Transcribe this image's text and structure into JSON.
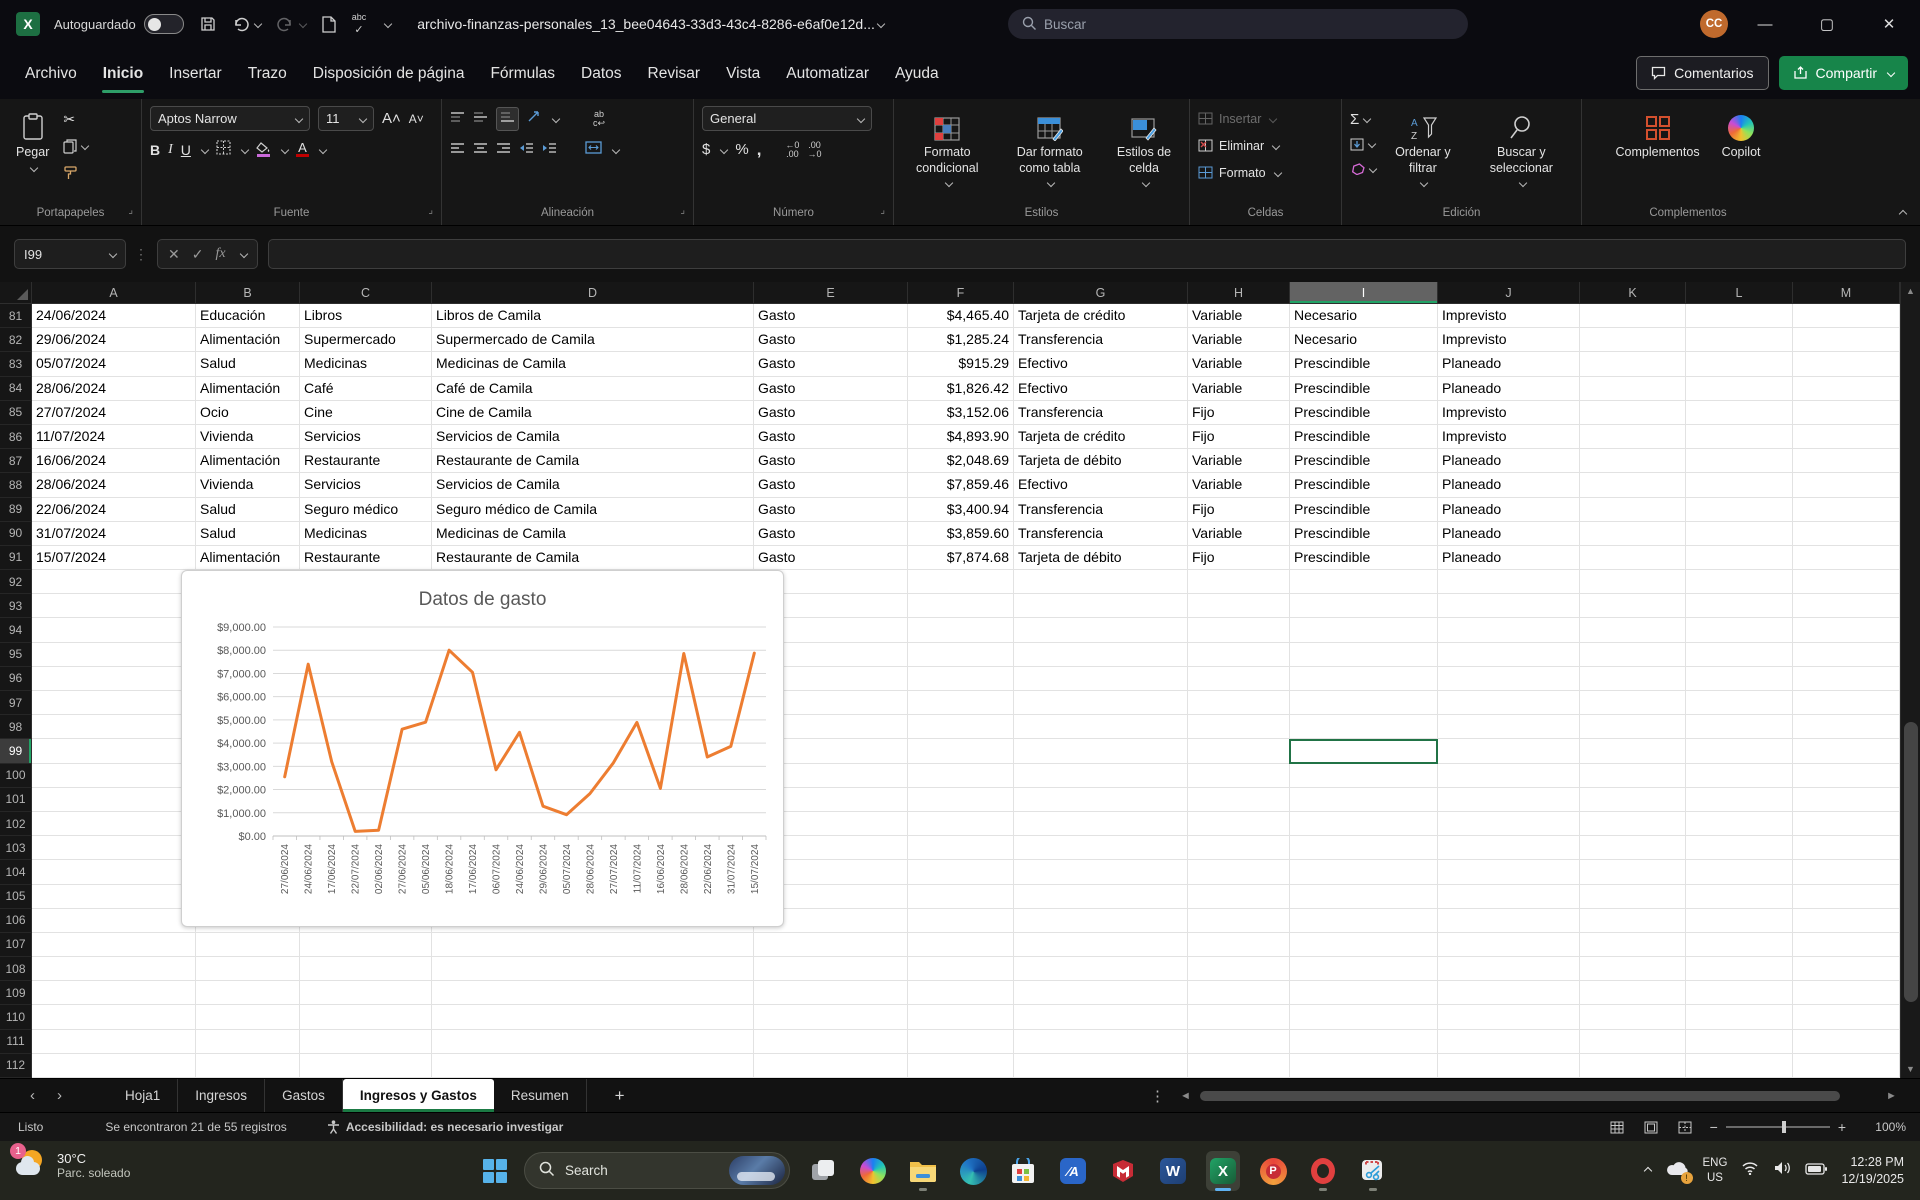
{
  "window": {
    "autosave_label": "Autoguardado",
    "title": "archivo-finanzas-personales_13_bee04643-33d3-43c4-8286-e6af0e12d...",
    "search_placeholder": "Buscar",
    "avatar_initials": "CC"
  },
  "menubar": {
    "tabs": [
      "Archivo",
      "Inicio",
      "Insertar",
      "Trazo",
      "Disposición de página",
      "Fórmulas",
      "Datos",
      "Revisar",
      "Vista",
      "Automatizar",
      "Ayuda"
    ],
    "active_tab": "Inicio",
    "comments_label": "Comentarios",
    "share_label": "Compartir"
  },
  "ribbon": {
    "paste_label": "Pegar",
    "font_name": "Aptos Narrow",
    "font_size": "11",
    "number_format": "General",
    "conditional_format_label": "Formato condicional",
    "format_table_label": "Dar formato como tabla",
    "cell_styles_label": "Estilos de celda",
    "insert_label": "Insertar",
    "delete_label": "Eliminar",
    "format_label": "Formato",
    "sort_filter_label": "Ordenar y filtrar",
    "find_select_label": "Buscar y seleccionar",
    "addins_label": "Complementos",
    "copilot_label": "Copilot",
    "groups": [
      "Portapapeles",
      "Fuente",
      "Alineación",
      "Número",
      "Estilos",
      "Celdas",
      "Edición",
      "Complementos"
    ]
  },
  "formula_bar": {
    "name_box": "I99",
    "formula": ""
  },
  "spreadsheet": {
    "columns": [
      "A",
      "B",
      "C",
      "D",
      "E",
      "F",
      "G",
      "H",
      "I",
      "J",
      "K",
      "L",
      "M"
    ],
    "selected_column": "I",
    "selected_row": 99,
    "selected_cell": "I99",
    "first_row": 81,
    "last_visible_row": 113,
    "rows": [
      {
        "n": 81,
        "cells": [
          "24/06/2024",
          "Educación",
          "Libros",
          "Libros de Camila",
          "Gasto",
          "$4,465.40",
          "Tarjeta de crédito",
          "Variable",
          "Necesario",
          "Imprevisto"
        ]
      },
      {
        "n": 82,
        "cells": [
          "29/06/2024",
          "Alimentación",
          "Supermercado",
          "Supermercado de Camila",
          "Gasto",
          "$1,285.24",
          "Transferencia",
          "Variable",
          "Necesario",
          "Imprevisto"
        ]
      },
      {
        "n": 83,
        "cells": [
          "05/07/2024",
          "Salud",
          "Medicinas",
          "Medicinas de Camila",
          "Gasto",
          "$915.29",
          "Efectivo",
          "Variable",
          "Prescindible",
          "Planeado"
        ]
      },
      {
        "n": 84,
        "cells": [
          "28/06/2024",
          "Alimentación",
          "Café",
          "Café de Camila",
          "Gasto",
          "$1,826.42",
          "Efectivo",
          "Variable",
          "Prescindible",
          "Planeado"
        ]
      },
      {
        "n": 85,
        "cells": [
          "27/07/2024",
          "Ocio",
          "Cine",
          "Cine de Camila",
          "Gasto",
          "$3,152.06",
          "Transferencia",
          "Fijo",
          "Prescindible",
          "Imprevisto"
        ]
      },
      {
        "n": 86,
        "cells": [
          "11/07/2024",
          "Vivienda",
          "Servicios",
          "Servicios de Camila",
          "Gasto",
          "$4,893.90",
          "Tarjeta de crédito",
          "Fijo",
          "Prescindible",
          "Imprevisto"
        ]
      },
      {
        "n": 87,
        "cells": [
          "16/06/2024",
          "Alimentación",
          "Restaurante",
          "Restaurante de Camila",
          "Gasto",
          "$2,048.69",
          "Tarjeta de débito",
          "Variable",
          "Prescindible",
          "Planeado"
        ]
      },
      {
        "n": 88,
        "cells": [
          "28/06/2024",
          "Vivienda",
          "Servicios",
          "Servicios de Camila",
          "Gasto",
          "$7,859.46",
          "Efectivo",
          "Variable",
          "Prescindible",
          "Planeado"
        ]
      },
      {
        "n": 89,
        "cells": [
          "22/06/2024",
          "Salud",
          "Seguro médico",
          "Seguro médico de Camila",
          "Gasto",
          "$3,400.94",
          "Transferencia",
          "Fijo",
          "Prescindible",
          "Planeado"
        ]
      },
      {
        "n": 90,
        "cells": [
          "31/07/2024",
          "Salud",
          "Medicinas",
          "Medicinas de Camila",
          "Gasto",
          "$3,859.60",
          "Transferencia",
          "Variable",
          "Prescindible",
          "Planeado"
        ]
      },
      {
        "n": 91,
        "cells": [
          "15/07/2024",
          "Alimentación",
          "Restaurante",
          "Restaurante de Camila",
          "Gasto",
          "$7,874.68",
          "Tarjeta de débito",
          "Fijo",
          "Prescindible",
          "Planeado"
        ]
      }
    ]
  },
  "chart_data": {
    "type": "line",
    "title": "Datos de gasto",
    "x": [
      "27/06/2024",
      "24/06/2024",
      "17/06/2024",
      "22/07/2024",
      "02/06/2024",
      "27/06/2024",
      "05/06/2024",
      "18/06/2024",
      "17/06/2024",
      "06/07/2024",
      "24/06/2024",
      "29/06/2024",
      "05/07/2024",
      "28/06/2024",
      "27/07/2024",
      "11/07/2024",
      "16/06/2024",
      "28/06/2024",
      "22/06/2024",
      "31/07/2024",
      "15/07/2024"
    ],
    "values": [
      2550,
      7400,
      3200,
      200,
      250,
      4600,
      4900,
      8000,
      7050,
      2850,
      4465.4,
      1285.24,
      915.29,
      1826.42,
      3152.06,
      4893.9,
      2048.69,
      7859.46,
      3400.94,
      3859.6,
      7874.68
    ],
    "ylim": [
      0,
      9000
    ],
    "ytick_step": 1000,
    "series_color": "#ED7D31",
    "grid": true,
    "legend": false,
    "xlabel": "",
    "ylabel": ""
  },
  "sheet_tabs": {
    "tabs": [
      "Hoja1",
      "Ingresos",
      "Gastos",
      "Ingresos y Gastos",
      "Resumen"
    ],
    "active": "Ingresos y Gastos",
    "add_label": "+"
  },
  "status_bar": {
    "mode": "Listo",
    "records": "Se encontraron 21 de 55 registros",
    "accessibility": "Accesibilidad: es necesario investigar",
    "zoom": "100%"
  },
  "taskbar": {
    "weather_badge": "1",
    "weather_temp": "30°C",
    "weather_desc": "Parc. soleado",
    "search_label": "Search",
    "icons": [
      "task-view",
      "copilot",
      "file-explorer",
      "edge",
      "microsoft-store",
      "app-a",
      "mcafee",
      "word",
      "excel",
      "p-app",
      "opera",
      "snipping-tool"
    ],
    "language_line1": "ENG",
    "language_line2": "US",
    "time": "12:28 PM",
    "date": "12/19/2025"
  },
  "colors": {
    "accent_green": "#21a366",
    "share_button": "#17854a",
    "chart_line": "#ED7D31",
    "fill_swatch": "#c969d9",
    "font_color_swatch": "#c00000",
    "selection_border": "#217346"
  }
}
